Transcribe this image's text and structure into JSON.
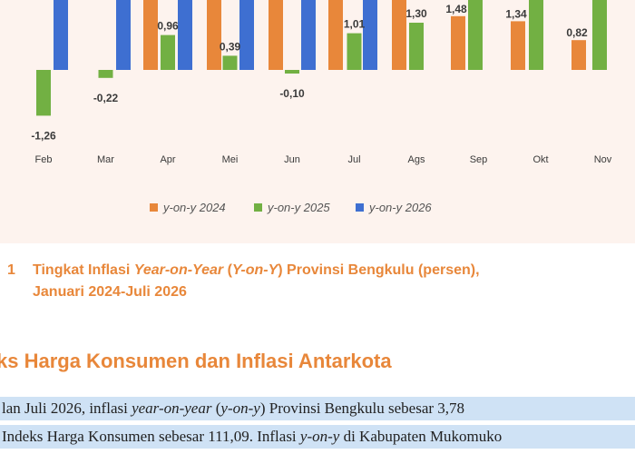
{
  "chart_data": {
    "type": "bar",
    "categories": [
      "Feb",
      "Mar",
      "Apr",
      "Mei",
      "Jun",
      "Jul",
      "Ags",
      "Sep",
      "Okt",
      "Nov"
    ],
    "series": [
      {
        "name": "y-on-y 2024",
        "color": "#e8873a",
        "values": [
          null,
          null,
          null,
          null,
          null,
          null,
          null,
          1.48,
          1.34,
          0.82
        ]
      },
      {
        "name": "y-on-y 2025",
        "color": "#72b043",
        "values": [
          -1.26,
          -0.22,
          0.96,
          0.39,
          -0.1,
          1.01,
          1.3,
          null,
          null,
          null
        ]
      },
      {
        "name": "y-on-y 2026",
        "color": "#3e6fd1",
        "values": [
          null,
          null,
          null,
          null,
          null,
          null,
          null,
          null,
          null,
          null
        ]
      }
    ],
    "data_labels": [
      "-1,26",
      "-0,22",
      "0,96",
      "0,39",
      "-0,10",
      "1,01",
      "1,30",
      "1,48",
      "1,34",
      "0,82"
    ],
    "legend_position": "bottom"
  },
  "legend": [
    {
      "label": "y-on-y 2024",
      "color": "#e8873a"
    },
    {
      "label": "y-on-y 2025",
      "color": "#72b043"
    },
    {
      "label": "y-on-y 2026",
      "color": "#3e6fd1"
    }
  ],
  "caption": {
    "number": "1",
    "text_pre": "Tingkat Inflasi ",
    "text_italic_1": "Year-on-Year",
    "text_mid": " (",
    "text_italic_2": "Y-on-Y",
    "text_post": ") Provinsi Bengkulu (persen),",
    "line2": "Januari 2024-Juli 2026"
  },
  "section_heading": "ks Harga Konsumen dan Inflasi Antarkota",
  "paragraph": {
    "line1_a": "lan Juli 2026, inflasi ",
    "line1_i1": "year-on-year",
    "line1_b": " (",
    "line1_i2": "y-on-y",
    "line1_c": ") Provinsi Bengkulu sebesar 3,78",
    "line2_a": "Indeks Harga Konsumen sebesar 111,09. Inflasi ",
    "line2_i": "y-on-y",
    "line2_b": " di Kabupaten Mukomuko"
  }
}
